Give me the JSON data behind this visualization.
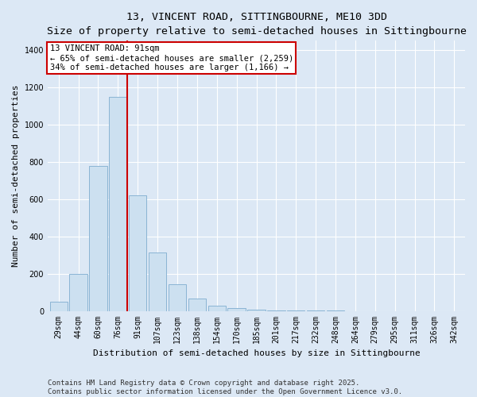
{
  "title": "13, VINCENT ROAD, SITTINGBOURNE, ME10 3DD",
  "subtitle": "Size of property relative to semi-detached houses in Sittingbourne",
  "xlabel": "Distribution of semi-detached houses by size in Sittingbourne",
  "ylabel": "Number of semi-detached properties",
  "categories": [
    "29sqm",
    "44sqm",
    "60sqm",
    "76sqm",
    "91sqm",
    "107sqm",
    "123sqm",
    "138sqm",
    "154sqm",
    "170sqm",
    "185sqm",
    "201sqm",
    "217sqm",
    "232sqm",
    "248sqm",
    "264sqm",
    "279sqm",
    "295sqm",
    "311sqm",
    "326sqm",
    "342sqm"
  ],
  "values": [
    50,
    200,
    780,
    1150,
    620,
    315,
    145,
    65,
    30,
    15,
    5,
    3,
    1,
    1,
    1,
    0,
    0,
    0,
    0,
    0,
    0
  ],
  "highlight_index": 3,
  "bar_color": "#cce0f0",
  "bar_edge_color": "#8ab4d4",
  "highlight_line_color": "#cc0000",
  "annotation_text": "13 VINCENT ROAD: 91sqm\n← 65% of semi-detached houses are smaller (2,259)\n34% of semi-detached houses are larger (1,166) →",
  "annotation_box_color": "#ffffff",
  "annotation_box_edge": "#cc0000",
  "footer_line1": "Contains HM Land Registry data © Crown copyright and database right 2025.",
  "footer_line2": "Contains public sector information licensed under the Open Government Licence v3.0.",
  "ylim": [
    0,
    1450
  ],
  "bg_color": "#dce8f5",
  "plot_bg_color": "#dce8f5",
  "title_fontsize": 9.5,
  "subtitle_fontsize": 8.5,
  "axis_label_fontsize": 8,
  "tick_fontsize": 7,
  "annotation_fontsize": 7.5
}
